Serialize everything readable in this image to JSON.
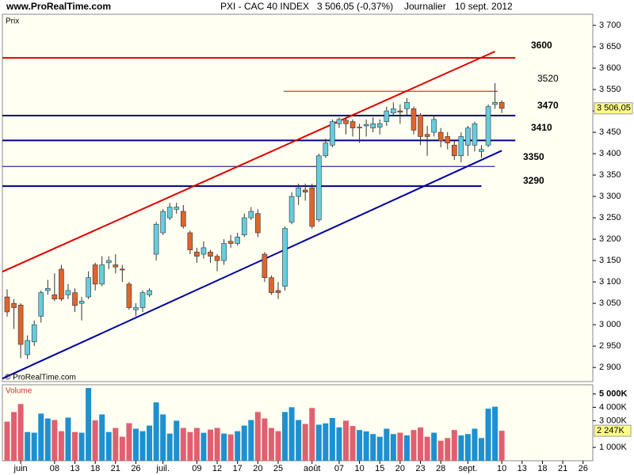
{
  "header": {
    "site": "www.ProRealTime.com",
    "symbol": "PXI - CAC 40 INDEX",
    "quote": "3 506,05 (-0,37%)",
    "period": "Journalier",
    "date": "10 sept. 2012"
  },
  "chart_data": [
    {
      "type": "candlestick",
      "panel_label": "Prix",
      "watermark": "© ProRealTime.com",
      "categories": [
        null,
        null,
        "juin",
        null,
        null,
        null,
        null,
        "08",
        null,
        null,
        "13",
        null,
        null,
        "18",
        null,
        null,
        "21",
        null,
        null,
        "26",
        null,
        null,
        null,
        "juil.",
        null,
        null,
        null,
        null,
        "09",
        null,
        null,
        "12",
        null,
        null,
        "17",
        null,
        null,
        "20",
        null,
        null,
        "25",
        null,
        null,
        null,
        null,
        "août",
        null,
        null,
        null,
        "07",
        null,
        null,
        "10",
        null,
        null,
        "15",
        null,
        null,
        "20",
        null,
        null,
        "23",
        null,
        null,
        "28",
        null,
        null,
        null,
        "sept.",
        null,
        null,
        null,
        null,
        "10",
        null,
        null,
        "13",
        null,
        null,
        "18",
        null,
        null,
        "21",
        null,
        null,
        "26",
        null
      ],
      "open": [
        3065,
        3050,
        3046,
        2930,
        2960,
        3020,
        3080,
        3070,
        3130,
        3070,
        3075,
        3050,
        3065,
        3140,
        3095,
        3145,
        3140,
        3130,
        3095,
        3035,
        3040,
        3070,
        3165,
        3215,
        3250,
        3270,
        3265,
        3215,
        3170,
        3165,
        3170,
        3160,
        3150,
        3195,
        3190,
        3210,
        3250,
        3260,
        3165,
        3110,
        3080,
        3090,
        3240,
        3300,
        3315,
        3320,
        3245,
        3395,
        3420,
        3470,
        3478,
        3475,
        3460,
        3465,
        3460,
        3462,
        3475,
        3495,
        3500,
        3505,
        3505,
        3490,
        3445,
        3450,
        3450,
        3440,
        3420,
        3395,
        3420,
        3420,
        3405,
        3420,
        3515,
        3520,
        null,
        null,
        null,
        null,
        null,
        null,
        null,
        null,
        null,
        null,
        null,
        null,
        null
      ],
      "high": [
        3083,
        3060,
        3050,
        2975,
        3010,
        3080,
        3105,
        3120,
        3140,
        3095,
        3085,
        3065,
        3125,
        3145,
        3160,
        3160,
        3165,
        3140,
        3100,
        3050,
        3080,
        3085,
        3240,
        3270,
        3285,
        3285,
        3280,
        3220,
        3180,
        3195,
        3175,
        3165,
        3200,
        3210,
        3215,
        3260,
        3275,
        3270,
        3170,
        3115,
        3100,
        3230,
        3310,
        3330,
        3330,
        3330,
        3400,
        3435,
        3480,
        3485,
        3485,
        3480,
        3470,
        3480,
        3485,
        3480,
        3510,
        3520,
        3515,
        3530,
        3510,
        3495,
        3465,
        3490,
        3460,
        3450,
        3430,
        3450,
        3465,
        3475,
        3420,
        3515,
        3565,
        3525,
        null,
        null,
        null,
        null,
        null,
        null,
        null,
        null,
        null,
        null,
        null,
        null,
        null
      ],
      "low": [
        3019,
        2990,
        2922,
        2920,
        2950,
        3005,
        3070,
        3055,
        3055,
        3060,
        3030,
        3010,
        3060,
        3080,
        3090,
        3130,
        3120,
        3100,
        3035,
        3020,
        3030,
        3065,
        3150,
        3210,
        3245,
        3260,
        3225,
        3165,
        3145,
        3155,
        3145,
        3125,
        3140,
        3180,
        3185,
        3205,
        3245,
        3205,
        3100,
        3070,
        3060,
        3080,
        3235,
        3280,
        3290,
        3225,
        3240,
        3390,
        3415,
        3460,
        3445,
        3440,
        3425,
        3440,
        3450,
        3445,
        3465,
        3490,
        3470,
        3490,
        3445,
        3420,
        3395,
        3440,
        3415,
        3410,
        3385,
        3380,
        3395,
        3405,
        3390,
        3415,
        3505,
        3495,
        null,
        null,
        null,
        null,
        null,
        null,
        null,
        null,
        null,
        null,
        null,
        null,
        null
      ],
      "close": [
        3030,
        3040,
        2954,
        2963,
        3000,
        3075,
        3085,
        3060,
        3060,
        3080,
        3045,
        3055,
        3110,
        3095,
        3140,
        3150,
        3135,
        3128,
        3040,
        3040,
        3075,
        3080,
        3235,
        3265,
        3275,
        3275,
        3230,
        3175,
        3160,
        3180,
        3160,
        3150,
        3190,
        3190,
        3205,
        3250,
        3265,
        3215,
        3110,
        3075,
        3075,
        3225,
        3300,
        3320,
        3310,
        3230,
        3395,
        3425,
        3475,
        3480,
        3470,
        3460,
        3462,
        3468,
        3470,
        3470,
        3500,
        3505,
        3497,
        3520,
        3455,
        3440,
        3440,
        3480,
        3430,
        3425,
        3395,
        3440,
        3460,
        3470,
        3410,
        3510,
        3520,
        3506.05,
        null,
        null,
        null,
        null,
        null,
        null,
        null,
        null,
        null,
        null,
        null,
        null,
        null
      ],
      "up_color": "#66cce0",
      "down_color": "#e0642c",
      "ylim": [
        2867,
        3726
      ],
      "yticks": [
        {
          "value": 2900,
          "label": "2 900"
        },
        {
          "value": 2950,
          "label": "2 950"
        },
        {
          "value": 3000,
          "label": "3 000"
        },
        {
          "value": 3050,
          "label": "3 050"
        },
        {
          "value": 3100,
          "label": "3 100"
        },
        {
          "value": 3150,
          "label": "3 150"
        },
        {
          "value": 3200,
          "label": "3 200"
        },
        {
          "value": 3250,
          "label": "3 250"
        },
        {
          "value": 3300,
          "label": "3 300"
        },
        {
          "value": 3350,
          "label": "3 350"
        },
        {
          "value": 3400,
          "label": "3 400"
        },
        {
          "value": 3450,
          "label": "3 450"
        },
        {
          "value": 3500,
          "label": "3 500"
        },
        {
          "value": 3550,
          "label": "3 550"
        },
        {
          "value": 3600,
          "label": "3 600"
        },
        {
          "value": 3650,
          "label": "3 650"
        },
        {
          "value": 3700,
          "label": "3 700"
        }
      ],
      "last_label": "3 506,05",
      "hlines": [
        {
          "value": 3624,
          "x": [
            -0.7,
            75
          ],
          "color": "#e00000",
          "width": 2
        },
        {
          "value": 3546,
          "x": [
            40.8,
            72.4
          ],
          "color": "#e00000",
          "width": 1
        },
        {
          "value": 3489,
          "x": [
            -0.7,
            75
          ],
          "color": "#000080",
          "width": 2
        },
        {
          "value": 3431,
          "x": [
            -0.7,
            75
          ],
          "color": "#000080",
          "width": 2
        },
        {
          "value": 3370,
          "x": [
            -0.7,
            72
          ],
          "color": "#000080",
          "width": 1
        },
        {
          "value": 3324,
          "x": [
            -0.7,
            70
          ],
          "color": "#000080",
          "width": 2
        }
      ],
      "trend_lines": [
        {
          "x": [
            -0.7,
            72
          ],
          "y": [
            3124,
            3639
          ],
          "color": "#e00000"
        },
        {
          "x": [
            -0.7,
            73
          ],
          "y": [
            2874,
            3407
          ],
          "color": "#0000a0"
        }
      ],
      "annotations": [
        "3600",
        "3520",
        "3470",
        "3410",
        "3350",
        "3290"
      ]
    },
    {
      "type": "volume",
      "panel_label": "Volume",
      "values": [
        2930,
        3650,
        4250,
        2150,
        2100,
        3530,
        3170,
        3050,
        2215,
        3230,
        2150,
        2100,
        5450,
        3030,
        3470,
        2150,
        2455,
        1800,
        2815,
        2400,
        2215,
        2635,
        4370,
        3470,
        2035,
        3000,
        2455,
        2150,
        2455,
        2095,
        2335,
        2455,
        2035,
        1975,
        2215,
        2635,
        3050,
        3650,
        3170,
        2455,
        2215,
        3650,
        4010,
        3050,
        2755,
        3950,
        2700,
        2800,
        3200,
        2500,
        3000,
        2600,
        2300,
        2200,
        2000,
        1800,
        2400,
        2000,
        2100,
        1900,
        2300,
        2500,
        1800,
        2100,
        1500,
        1700,
        2300,
        1900,
        2000,
        2400,
        1700,
        3900,
        4050,
        2247,
        null,
        null,
        null,
        null,
        null,
        null,
        null,
        null,
        null,
        null,
        null,
        null,
        null
      ],
      "up_color": "#1e90d0",
      "down_color": "#e06070",
      "ylim": [
        0,
        5690
      ],
      "yticks": [
        {
          "value": 1000,
          "label": "1 000K"
        },
        {
          "value": 3000,
          "label": "3 000K"
        },
        {
          "value": 4000,
          "label": "4 000K"
        },
        {
          "value": 5000,
          "label": "5 000K"
        }
      ],
      "last_label": "2 247K"
    }
  ]
}
